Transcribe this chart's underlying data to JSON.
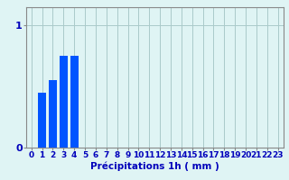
{
  "categories": [
    0,
    1,
    2,
    3,
    4,
    5,
    6,
    7,
    8,
    9,
    10,
    11,
    12,
    13,
    14,
    15,
    16,
    17,
    18,
    19,
    20,
    21,
    22,
    23
  ],
  "values": [
    0,
    0.45,
    0.55,
    0.75,
    0.75,
    0,
    0,
    0,
    0,
    0,
    0,
    0,
    0,
    0,
    0,
    0,
    0,
    0,
    0,
    0,
    0,
    0,
    0,
    0
  ],
  "bar_color": "#0055ff",
  "background_color": "#dff4f4",
  "grid_color": "#aacaca",
  "axis_color": "#888888",
  "text_color": "#0000bb",
  "xlabel": "Précipitations 1h ( mm )",
  "ylim": [
    0,
    1.15
  ],
  "yticks": [
    0,
    1
  ],
  "xlim": [
    -0.5,
    23.5
  ],
  "xlabel_fontsize": 7.5,
  "tick_fontsize": 6.5,
  "ytick_fontsize": 8
}
